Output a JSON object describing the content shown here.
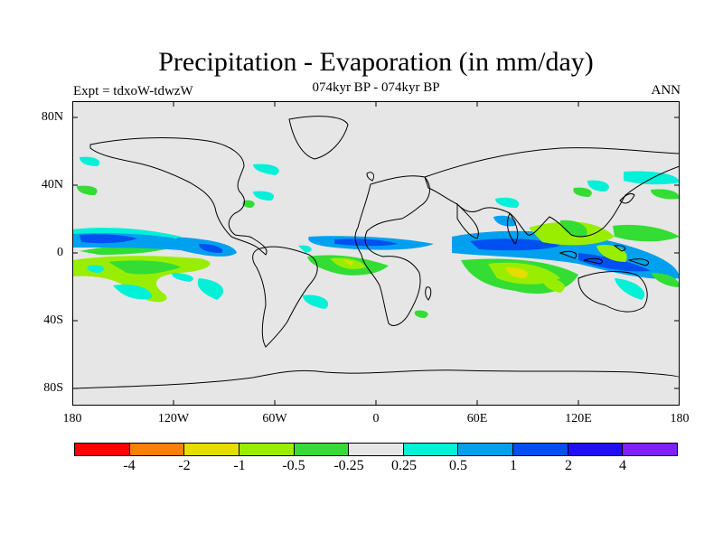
{
  "title": "Precipitation - Evaporation (in mm/day)",
  "subtitle": "074kyr BP - 074kyr BP",
  "experiment": "Expt = tdxoW-tdwzW",
  "season": "ANN",
  "latitude_labels": [
    "80N",
    "40N",
    "0",
    "40S",
    "80S"
  ],
  "longitude_labels": [
    "180",
    "120W",
    "60W",
    "0",
    "60E",
    "120E",
    "180"
  ],
  "colorbar": {
    "colors": [
      "#ff0000",
      "#ff8000",
      "#e6dc00",
      "#99ee00",
      "#33dd33",
      "#e6e6e6",
      "#00f0d8",
      "#00a0f0",
      "#0050f0",
      "#2010f0",
      "#8020ff"
    ],
    "labels": [
      "-4",
      "-2",
      "-1",
      "-0.5",
      "-0.25",
      "0.25",
      "0.5",
      "1",
      "2",
      "4"
    ]
  },
  "colors": {
    "background_map": "#e6e6e6",
    "coastline": "#000000"
  }
}
